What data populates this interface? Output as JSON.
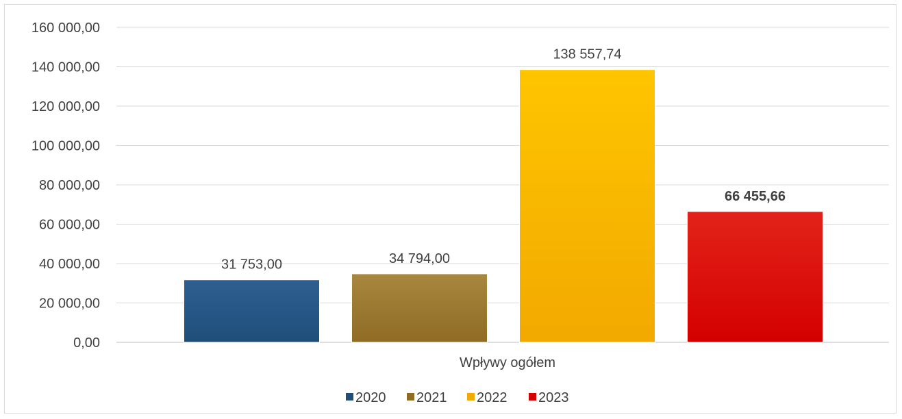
{
  "chart_data": {
    "type": "bar",
    "categories": [
      "Wpływy ogółem"
    ],
    "series": [
      {
        "name": "2020",
        "values": [
          31753.0
        ],
        "label": "31 753,00",
        "color": "#1f4e79",
        "color_top": "#2e5f91",
        "bold": false
      },
      {
        "name": "2021",
        "values": [
          34794.0
        ],
        "label": "34 794,00",
        "color": "#8f6b24",
        "color_top": "#a8873f",
        "bold": false
      },
      {
        "name": "2022",
        "values": [
          138557.74
        ],
        "label": "138 557,74",
        "color": "#f2a900",
        "color_top": "#ffc500",
        "bold": false
      },
      {
        "name": "2023",
        "values": [
          66455.66
        ],
        "label": "66 455,66",
        "color": "#d40000",
        "color_top": "#e2231a",
        "bold": true
      }
    ],
    "ylim": [
      0,
      160000
    ],
    "y_ticks": [
      {
        "value": 0,
        "label": "0,00"
      },
      {
        "value": 20000,
        "label": "20 000,00"
      },
      {
        "value": 40000,
        "label": "40 000,00"
      },
      {
        "value": 60000,
        "label": "60 000,00"
      },
      {
        "value": 80000,
        "label": "80 000,00"
      },
      {
        "value": 100000,
        "label": "100 000,00"
      },
      {
        "value": 120000,
        "label": "120 000,00"
      },
      {
        "value": 140000,
        "label": "140 000,00"
      },
      {
        "value": 160000,
        "label": "160 000,00"
      }
    ],
    "grid": true,
    "legend_position": "bottom",
    "title": "",
    "xlabel": "",
    "ylabel": ""
  }
}
